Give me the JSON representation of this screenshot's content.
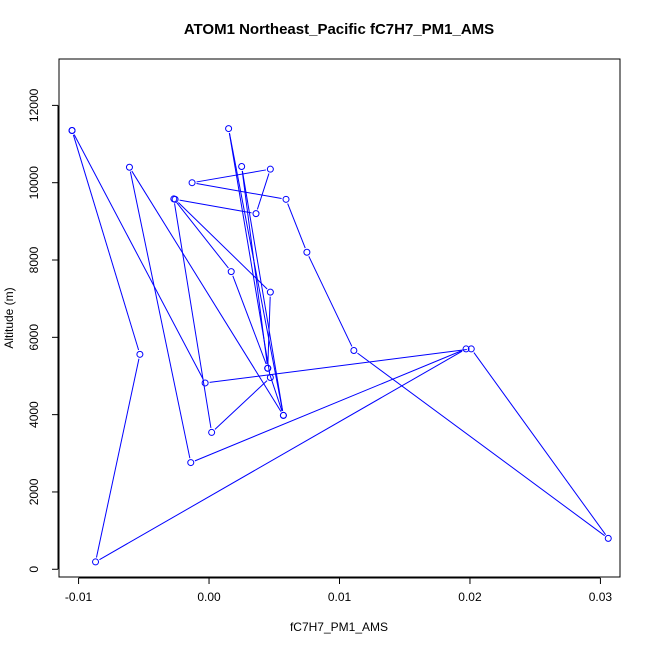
{
  "chart_data": {
    "type": "line",
    "title": "ATOM1 Northeast_Pacific fC7H7_PM1_AMS",
    "xlabel": "fC7H7_PM1_AMS",
    "ylabel": "Altitude (m)",
    "xlim": [
      -0.0115,
      0.0315
    ],
    "ylim": [
      -200,
      13200
    ],
    "x_ticks": [
      -0.01,
      0.0,
      0.01,
      0.02,
      0.03
    ],
    "x_tick_labels": [
      "-0.01",
      "0.00",
      "0.01",
      "0.02",
      "0.03"
    ],
    "y_ticks": [
      0,
      2000,
      4000,
      6000,
      8000,
      10000,
      12000
    ],
    "y_tick_labels": [
      "0",
      "2000",
      "4000",
      "6000",
      "8000",
      "10000",
      "12000"
    ],
    "grid": false,
    "marker": "open-circle",
    "color": "#0000ff",
    "series": [
      {
        "x": [
          -0.0105,
          -0.0003,
          0.0201,
          0.0306,
          0.0111,
          0.0075,
          0.0059,
          -0.0013,
          0.0047,
          0.0036,
          -0.0026,
          0.0047,
          0.0045,
          0.0057,
          0.0015,
          0.0047,
          0.0002,
          -0.0027,
          0.0017,
          0.0045,
          0.0025,
          0.0057,
          -0.0061,
          -0.0014,
          0.0197,
          -0.0087,
          -0.0053,
          -0.0105
        ],
        "y": [
          11350,
          4820,
          5700,
          800,
          5660,
          8200,
          9570,
          10000,
          10350,
          9200,
          9570,
          7170,
          5200,
          3980,
          11400,
          4960,
          3540,
          9580,
          7700,
          5200,
          10420,
          3980,
          10400,
          2760,
          5700,
          190,
          5560,
          11350
        ]
      }
    ]
  }
}
